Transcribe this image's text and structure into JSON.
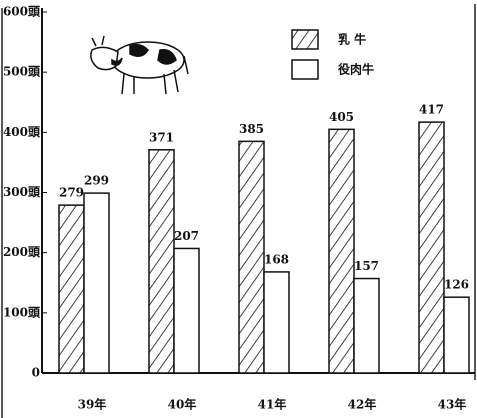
{
  "chart_data": {
    "type": "bar",
    "categories": [
      "39年",
      "40年",
      "41年",
      "42年",
      "43年"
    ],
    "series": [
      {
        "name": "乳 牛",
        "color": "#ffffff",
        "hatch": true,
        "values": [
          279,
          371,
          385,
          405,
          417
        ]
      },
      {
        "name": "役肉牛",
        "color": "#ffffff",
        "hatch": false,
        "values": [
          299,
          207,
          168,
          157,
          126
        ]
      }
    ],
    "ylim": [
      0,
      600
    ],
    "yticks": [
      0,
      {
        "value": 100,
        "label": "100頭"
      },
      {
        "value": 200,
        "label": "200頭"
      },
      {
        "value": 300,
        "label": "300頭"
      },
      {
        "value": 400,
        "label": "400頭"
      },
      {
        "value": 500,
        "label": "500頭"
      },
      {
        "value": 600,
        "label": "600頭"
      }
    ],
    "grid": false,
    "legend": "top-right"
  }
}
